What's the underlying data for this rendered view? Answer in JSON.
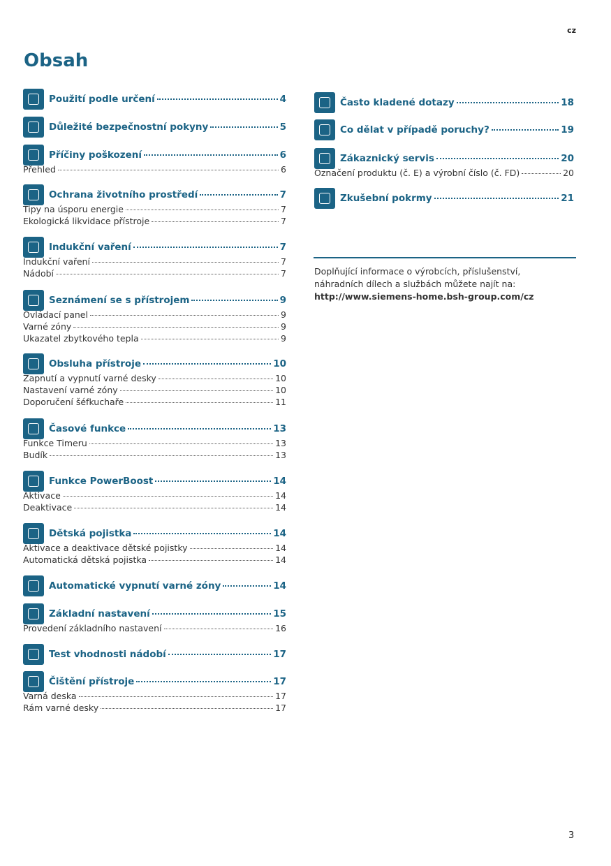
{
  "header": {
    "lang": "cz",
    "title": "Obsah"
  },
  "toc_left": [
    {
      "title": "Použití podle určení",
      "page": 4,
      "items": []
    },
    {
      "title": "Důležité bezpečnostní pokyny",
      "page": 5,
      "items": []
    },
    {
      "title": "Příčiny poškození",
      "page": 6,
      "items": [
        {
          "title": "Přehled",
          "page": 6
        }
      ]
    },
    {
      "title": "Ochrana životního prostředí",
      "page": 7,
      "items": [
        {
          "title": "Tipy na úsporu energie",
          "page": 7
        },
        {
          "title": "Ekologická likvidace přístroje",
          "page": 7
        }
      ]
    },
    {
      "title": "Indukční vaření",
      "page": 7,
      "items": [
        {
          "title": "Indukční vaření",
          "page": 7
        },
        {
          "title": "Nádobí",
          "page": 7
        }
      ]
    },
    {
      "title": "Seznámení se s přístrojem",
      "page": 9,
      "items": [
        {
          "title": "Ovládací panel",
          "page": 9
        },
        {
          "title": "Varné zóny",
          "page": 9
        },
        {
          "title": "Ukazatel zbytkového tepla",
          "page": 9
        }
      ]
    },
    {
      "title": "Obsluha přístroje",
      "page": 10,
      "items": [
        {
          "title": "Zapnutí a vypnutí varné desky",
          "page": 10
        },
        {
          "title": "Nastavení varné zóny",
          "page": 10
        },
        {
          "title": "Doporučení šéfkuchaře",
          "page": 11
        }
      ]
    },
    {
      "title": "Časové funkce",
      "page": 13,
      "items": [
        {
          "title": "Funkce Timeru",
          "page": 13
        },
        {
          "title": "Budík",
          "page": 13
        }
      ]
    },
    {
      "title": "Funkce PowerBoost",
      "page": 14,
      "items": [
        {
          "title": "Aktivace",
          "page": 14
        },
        {
          "title": "Deaktivace",
          "page": 14
        }
      ]
    },
    {
      "title": "Dětská pojistka",
      "page": 14,
      "items": [
        {
          "title": "Aktivace a deaktivace dětské pojistky",
          "page": 14
        },
        {
          "title": "Automatická dětská pojistka",
          "page": 14
        }
      ]
    },
    {
      "title": "Automatické vypnutí varné zóny",
      "page": 14,
      "items": []
    },
    {
      "title": "Základní nastavení",
      "page": 15,
      "items": [
        {
          "title": "Provedení základního nastavení",
          "page": 16
        }
      ]
    },
    {
      "title": "Test vhodnosti nádobí",
      "page": 17,
      "items": []
    },
    {
      "title": "Čištění přístroje",
      "page": 17,
      "items": [
        {
          "title": "Varná deska",
          "page": 17
        },
        {
          "title": "Rám varné desky",
          "page": 17
        }
      ]
    }
  ],
  "toc_right": [
    {
      "title": "Často kladené dotazy",
      "page": 18,
      "items": []
    },
    {
      "title": "Co dělat v případě poruchy?",
      "page": 19,
      "items": []
    },
    {
      "title": "Zákaznický servis",
      "page": 20,
      "items": [
        {
          "title": "Označení produktu (č. E) a výrobní číslo (č. FD)",
          "page": 20
        }
      ]
    },
    {
      "title": "Zkušební pokrmy",
      "page": 21,
      "items": []
    }
  ],
  "info": {
    "lines": [
      "Doplňující informace o výrobcích, příslušenství,",
      "náhradních dílech a službách můžete najít na:"
    ],
    "url": "http://www.siemens-home.bsh-group.com/cz"
  },
  "footer": {
    "page_number": 3
  }
}
